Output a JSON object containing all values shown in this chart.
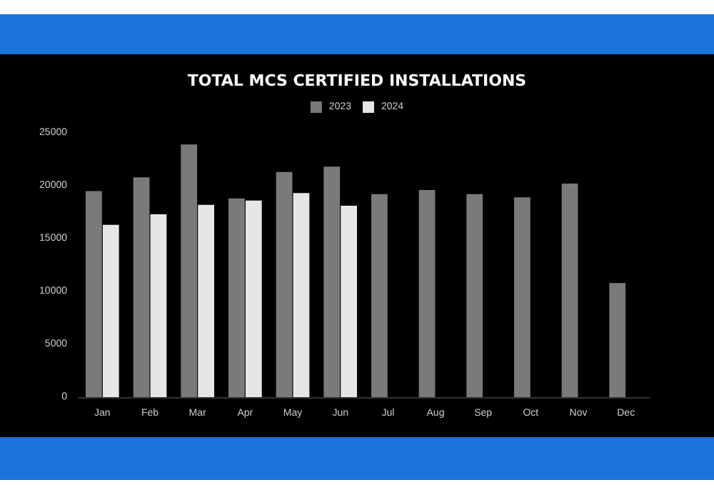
{
  "chart_data": {
    "type": "bar",
    "title": "TOTAL MCS CERTIFIED INSTALLATIONS",
    "categories": [
      "Jan",
      "Feb",
      "Mar",
      "Apr",
      "May",
      "Jun",
      "Jul",
      "Aug",
      "Sep",
      "Oct",
      "Nov",
      "Dec"
    ],
    "series": [
      {
        "name": "2023",
        "color": "#7a7a7a",
        "values": [
          19500,
          20800,
          23900,
          18800,
          21300,
          21800,
          19200,
          19600,
          19200,
          18900,
          20200,
          10800
        ]
      },
      {
        "name": "2024",
        "color": "#e6e6e6",
        "values": [
          16300,
          17300,
          18200,
          18600,
          19300,
          18100,
          null,
          null,
          null,
          null,
          null,
          null
        ]
      }
    ],
    "ylim": [
      0,
      25000
    ],
    "yticks": [
      0,
      5000,
      10000,
      15000,
      20000,
      25000
    ],
    "grid": false,
    "legend": "top"
  }
}
